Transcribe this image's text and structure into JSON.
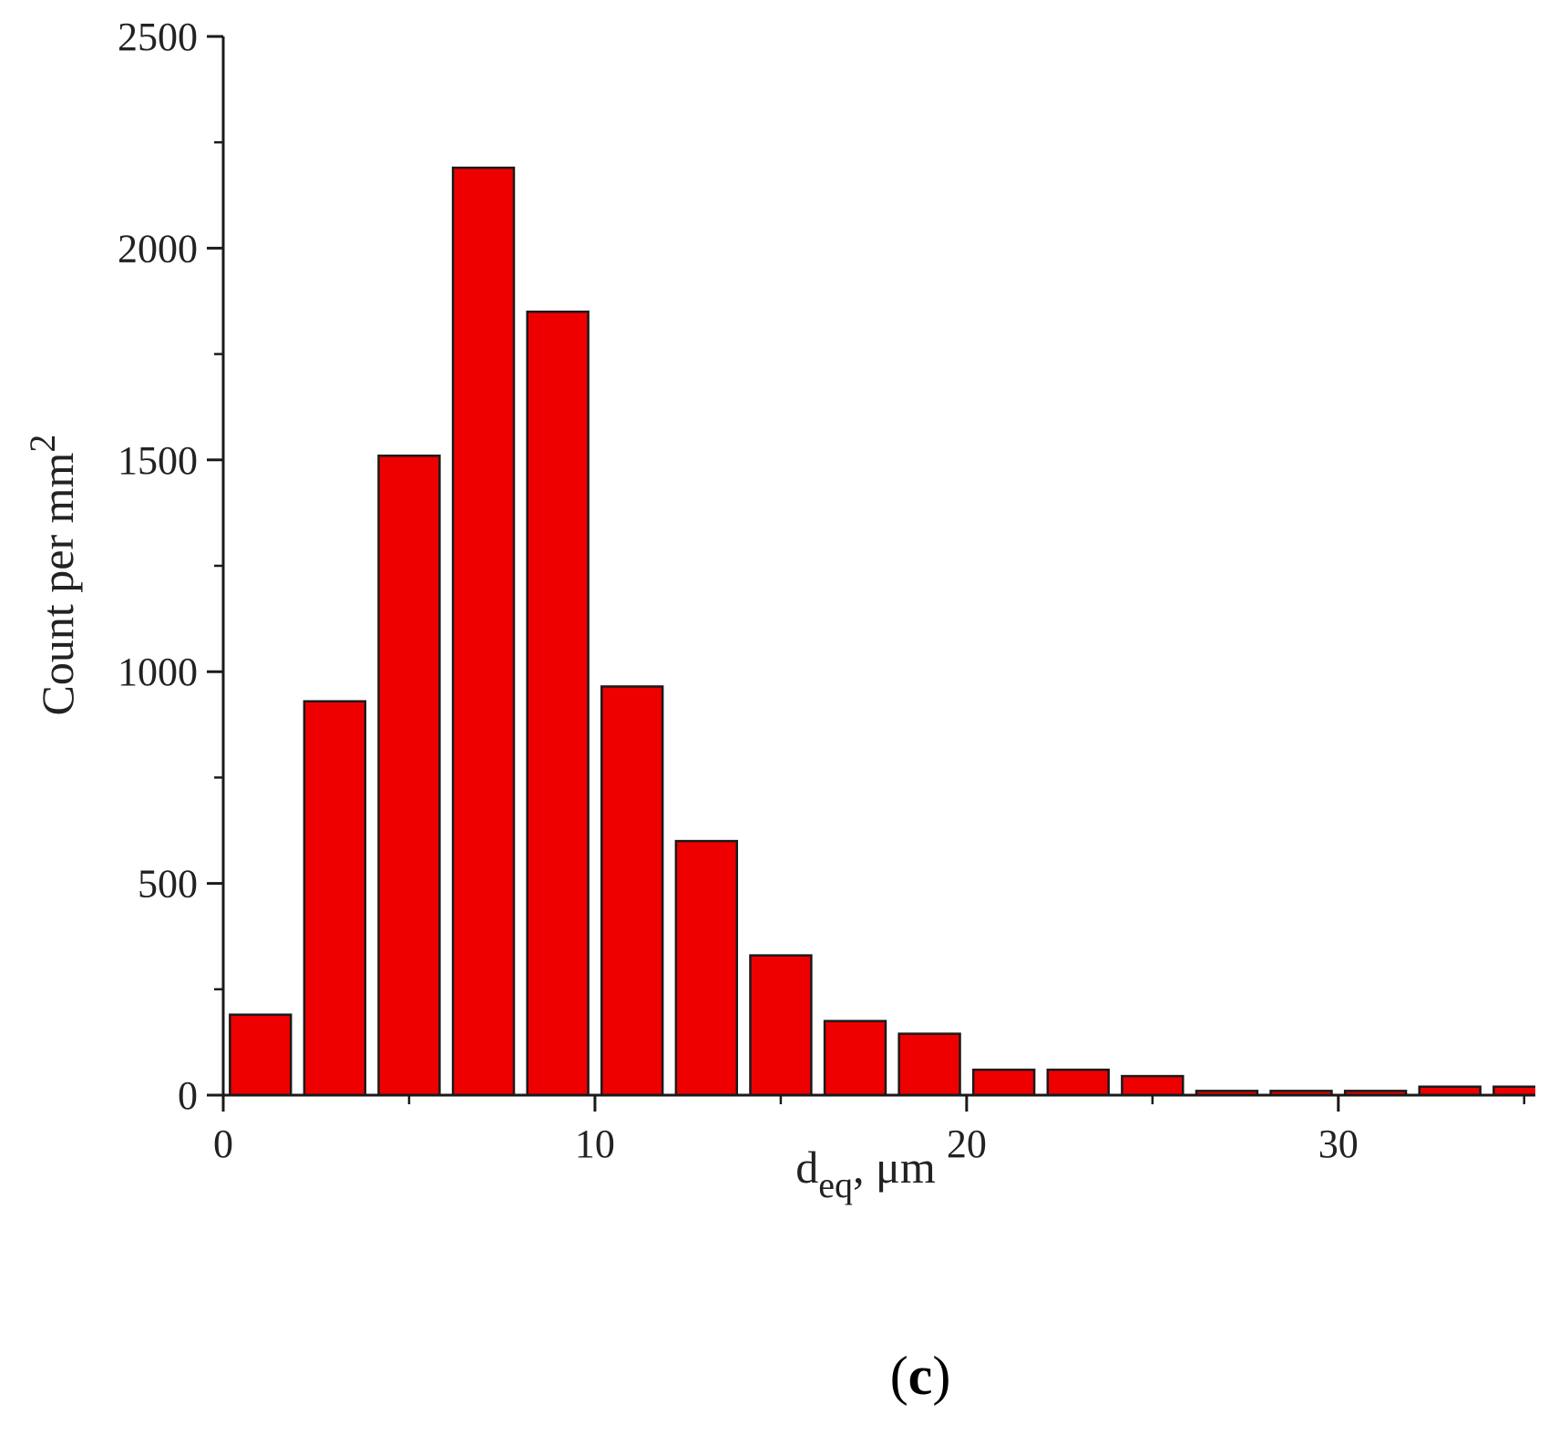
{
  "chart_data": {
    "type": "bar",
    "xlabel_main": "d",
    "xlabel_sub": "eq",
    "xlabel_unit": ", μm",
    "ylabel_main": "Count per mm",
    "ylabel_sup": "2",
    "xlim": [
      0,
      35.3
    ],
    "ylim": [
      0,
      2500
    ],
    "xticks": [
      0,
      10,
      20,
      30
    ],
    "yticks": [
      0,
      500,
      1000,
      1500,
      2000,
      2500
    ],
    "bin_width": 2,
    "bars": [
      {
        "x": 1,
        "value": 190
      },
      {
        "x": 3,
        "value": 930
      },
      {
        "x": 5,
        "value": 1510
      },
      {
        "x": 7,
        "value": 2190
      },
      {
        "x": 9,
        "value": 1850
      },
      {
        "x": 11,
        "value": 965
      },
      {
        "x": 13,
        "value": 600
      },
      {
        "x": 15,
        "value": 330
      },
      {
        "x": 17,
        "value": 175
      },
      {
        "x": 19,
        "value": 145
      },
      {
        "x": 21,
        "value": 60
      },
      {
        "x": 23,
        "value": 60
      },
      {
        "x": 25,
        "value": 45
      },
      {
        "x": 27,
        "value": 10
      },
      {
        "x": 29,
        "value": 10
      },
      {
        "x": 31,
        "value": 10
      },
      {
        "x": 33,
        "value": 20
      },
      {
        "x": 35,
        "value": 20
      }
    ],
    "bar_color": "#ee0000",
    "bar_edge_color": "#1a1a1a",
    "grid": false
  },
  "panel": {
    "open": "(",
    "letter": "c",
    "close": ")"
  }
}
